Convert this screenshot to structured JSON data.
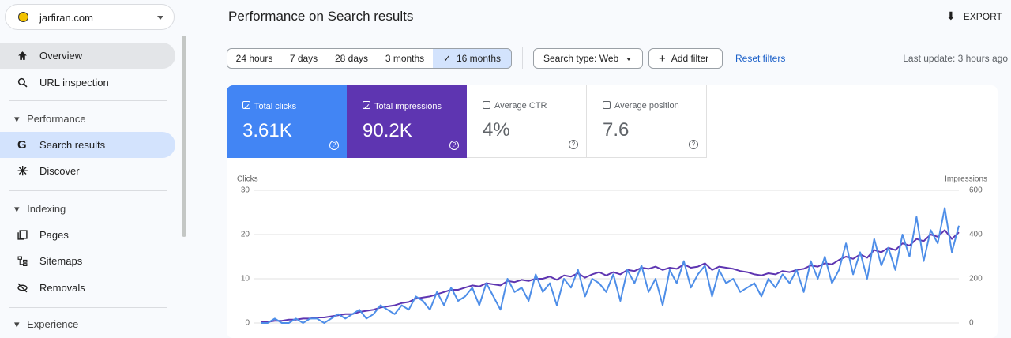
{
  "sidebar": {
    "site": "jarfiran.com",
    "top": [
      "Overview",
      "URL inspection"
    ],
    "sections": [
      {
        "title": "Performance",
        "items": [
          "Search results",
          "Discover"
        ]
      },
      {
        "title": "Indexing",
        "items": [
          "Pages",
          "Sitemaps",
          "Removals"
        ]
      },
      {
        "title": "Experience",
        "items": []
      }
    ]
  },
  "header": {
    "title": "Performance on Search results",
    "export": "EXPORT"
  },
  "filters": {
    "ranges": [
      "24 hours",
      "7 days",
      "28 days",
      "3 months",
      "16 months"
    ],
    "search_type": "Search type: Web",
    "add_filter": "Add filter",
    "reset": "Reset filters",
    "last_update": "Last update: 3 hours ago"
  },
  "metrics": [
    {
      "label": "Total clicks",
      "value": "3.61K"
    },
    {
      "label": "Total impressions",
      "value": "90.2K"
    },
    {
      "label": "Average CTR",
      "value": "4%"
    },
    {
      "label": "Average position",
      "value": "7.6"
    }
  ],
  "chart_data": {
    "type": "line",
    "ylabel": "Clicks",
    "y2label": "Impressions",
    "ylim": [
      0,
      30
    ],
    "yticks": [
      0,
      10,
      20,
      30
    ],
    "y2lim": [
      0,
      600
    ],
    "y2ticks": [
      0,
      200,
      400,
      600
    ],
    "grid": true,
    "series": [
      {
        "name": "Clicks",
        "color": "#4e8ee8",
        "values": [
          0,
          0,
          1,
          0,
          0,
          1,
          0,
          1,
          1,
          0,
          1,
          2,
          1,
          2,
          3,
          1,
          2,
          4,
          3,
          2,
          4,
          3,
          6,
          5,
          3,
          7,
          4,
          8,
          5,
          6,
          8,
          4,
          9,
          6,
          3,
          10,
          7,
          8,
          5,
          11,
          7,
          9,
          4,
          10,
          8,
          12,
          6,
          10,
          9,
          7,
          11,
          5,
          12,
          9,
          13,
          7,
          10,
          4,
          12,
          9,
          14,
          8,
          11,
          13,
          6,
          12,
          9,
          10,
          7,
          8,
          9,
          6,
          10,
          8,
          11,
          9,
          12,
          7,
          14,
          10,
          15,
          9,
          12,
          18,
          11,
          16,
          10,
          19,
          13,
          17,
          12,
          20,
          15,
          24,
          14,
          21,
          18,
          26,
          16,
          22
        ]
      },
      {
        "name": "Impressions",
        "color": "#5e35b1",
        "axis": "y2",
        "values": [
          5,
          5,
          10,
          10,
          15,
          15,
          20,
          20,
          25,
          25,
          30,
          35,
          40,
          40,
          50,
          55,
          60,
          70,
          75,
          80,
          90,
          95,
          110,
          115,
          120,
          130,
          140,
          150,
          150,
          160,
          170,
          165,
          180,
          175,
          170,
          190,
          185,
          195,
          190,
          200,
          200,
          210,
          195,
          215,
          210,
          225,
          205,
          220,
          230,
          215,
          230,
          220,
          240,
          235,
          250,
          245,
          255,
          240,
          250,
          245,
          265,
          250,
          255,
          270,
          240,
          255,
          250,
          245,
          235,
          230,
          220,
          215,
          225,
          220,
          235,
          230,
          240,
          245,
          260,
          255,
          270,
          265,
          285,
          300,
          290,
          310,
          295,
          330,
          320,
          340,
          330,
          360,
          350,
          380,
          370,
          400,
          390,
          420,
          380,
          410
        ]
      }
    ]
  }
}
